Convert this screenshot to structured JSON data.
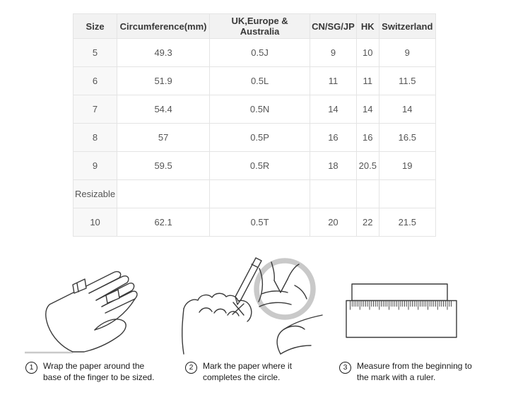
{
  "table": {
    "columns": [
      "Size",
      "Circumference(mm)",
      "UK,Europe & Australia",
      "CN/SG/JP",
      "HK",
      "Switzerland"
    ],
    "rows": [
      [
        "5",
        "49.3",
        "0.5J",
        "9",
        "10",
        "9"
      ],
      [
        "6",
        "51.9",
        "0.5L",
        "11",
        "11",
        "11.5"
      ],
      [
        "7",
        "54.4",
        "0.5N",
        "14",
        "14",
        "14"
      ],
      [
        "8",
        "57",
        "0.5P",
        "16",
        "16",
        "16.5"
      ],
      [
        "9",
        "59.5",
        "0.5R",
        "18",
        "20.5",
        "19"
      ],
      [
        "Resizable",
        "",
        "",
        "",
        "",
        ""
      ],
      [
        "10",
        "62.1",
        "0.5T",
        "20",
        "22",
        "21.5"
      ]
    ]
  },
  "steps": [
    {
      "num": "1",
      "lines": [
        "Wrap the paper around the",
        "base of the finger to be sized."
      ],
      "illustration": "hand-with-paper-strip"
    },
    {
      "num": "2",
      "lines": [
        "Mark the paper where it",
        "completes the circle."
      ],
      "illustration": "pen-marking-paper"
    },
    {
      "num": "3",
      "lines": [
        "Measure from the beginning to",
        "the mark with a ruler."
      ],
      "illustration": "paper-strip-on-ruler"
    }
  ],
  "colors": {
    "header_bg": "#f2f2f2",
    "row_label_bg": "#f8f8f8",
    "border": "#e4e4e4",
    "header_text": "#383838",
    "cell_text": "#555555",
    "caption_text": "#1b1b1b",
    "line_art": "#3a3a3a",
    "gray_accent": "#c9c9c9"
  }
}
